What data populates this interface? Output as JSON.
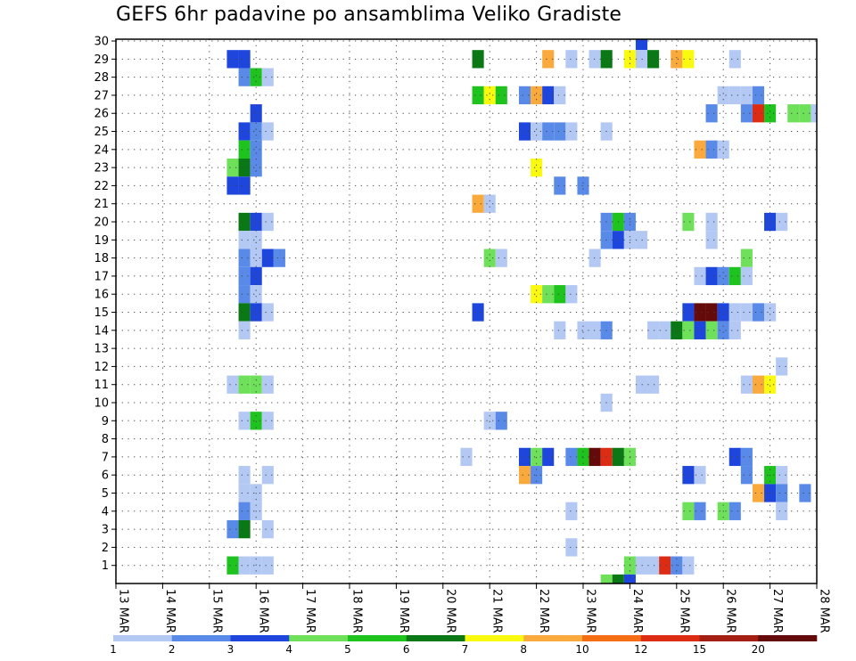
{
  "chart_data": {
    "type": "heatmap",
    "title": "GEFS 6hr padavine po ansamblima Veliko Gradiste",
    "x_tick_labels": [
      "13 MAR",
      "14 MAR",
      "15 MAR",
      "16 MAR",
      "17 MAR",
      "18 MAR",
      "19 MAR",
      "20 MAR",
      "21 MAR",
      "22 MAR",
      "23 MAR",
      "24 MAR",
      "25 MAR",
      "26 MAR",
      "27 MAR",
      "28 MAR"
    ],
    "y_tick_labels": [
      "1",
      "2",
      "3",
      "4",
      "5",
      "6",
      "7",
      "8",
      "9",
      "10",
      "11",
      "12",
      "13",
      "14",
      "15",
      "16",
      "17",
      "18",
      "19",
      "20",
      "21",
      "22",
      "23",
      "24",
      "25",
      "26",
      "27",
      "28",
      "29",
      "30"
    ],
    "x_range_days": [
      13,
      28
    ],
    "y_range_members": [
      0,
      30
    ],
    "grid": "dotted",
    "colorbar": {
      "placement": "bottom",
      "levels": [
        "1",
        "2",
        "3",
        "4",
        "5",
        "6",
        "7",
        "8",
        "10",
        "12",
        "15",
        "20"
      ],
      "colors": [
        "#b4c8f4",
        "#5a8ae8",
        "#1e46dc",
        "#6ee05a",
        "#1ec31e",
        "#0a7814",
        "#fafa10",
        "#faaa3c",
        "#f56e14",
        "#dc2d14",
        "#a51e14",
        "#640a0a"
      ]
    },
    "cells": [
      [
        30,
        24.25,
        2
      ],
      [
        29,
        15.5,
        2
      ],
      [
        29,
        15.75,
        2
      ],
      [
        29,
        20.75,
        5
      ],
      [
        29,
        22.25,
        7
      ],
      [
        29,
        22.75,
        0
      ],
      [
        29,
        23.25,
        0
      ],
      [
        29,
        23.5,
        5
      ],
      [
        29,
        24,
        6
      ],
      [
        29,
        24.25,
        0
      ],
      [
        29,
        24.5,
        5
      ],
      [
        29,
        25,
        7
      ],
      [
        29,
        25.25,
        6
      ],
      [
        29,
        26.25,
        0
      ],
      [
        28,
        15.75,
        1
      ],
      [
        28,
        16,
        4
      ],
      [
        28,
        16.25,
        0
      ],
      [
        27,
        20.75,
        4
      ],
      [
        27,
        21,
        6
      ],
      [
        27,
        21.25,
        4
      ],
      [
        27,
        21.75,
        1
      ],
      [
        27,
        22,
        7
      ],
      [
        27,
        22.25,
        2
      ],
      [
        27,
        22.5,
        0
      ],
      [
        27,
        26,
        0
      ],
      [
        27,
        26.25,
        0
      ],
      [
        27,
        26.5,
        0
      ],
      [
        27,
        26.75,
        1
      ],
      [
        26,
        16,
        2
      ],
      [
        26,
        25.75,
        1
      ],
      [
        26,
        26.5,
        1
      ],
      [
        26,
        26.75,
        9
      ],
      [
        26,
        27,
        4
      ],
      [
        26,
        27.5,
        3
      ],
      [
        26,
        27.75,
        3
      ],
      [
        26,
        28,
        0
      ],
      [
        25,
        15.75,
        2
      ],
      [
        25,
        16,
        1
      ],
      [
        25,
        16.25,
        0
      ],
      [
        25,
        21.75,
        2
      ],
      [
        25,
        22,
        0
      ],
      [
        25,
        22.25,
        1
      ],
      [
        25,
        22.5,
        1
      ],
      [
        25,
        22.75,
        0
      ],
      [
        25,
        23.5,
        0
      ],
      [
        24,
        15.75,
        4
      ],
      [
        24,
        16,
        1
      ],
      [
        24,
        25.5,
        7
      ],
      [
        24,
        25.75,
        1
      ],
      [
        24,
        26,
        0
      ],
      [
        23,
        15.5,
        3
      ],
      [
        23,
        15.75,
        5
      ],
      [
        23,
        16,
        1
      ],
      [
        23,
        22,
        6
      ],
      [
        22,
        15.5,
        2
      ],
      [
        22,
        15.75,
        2
      ],
      [
        22,
        22.5,
        1
      ],
      [
        22,
        23,
        1
      ],
      [
        21,
        20.75,
        7
      ],
      [
        21,
        21,
        0
      ],
      [
        20,
        15.75,
        5
      ],
      [
        20,
        16,
        2
      ],
      [
        20,
        16.25,
        0
      ],
      [
        20,
        23.5,
        1
      ],
      [
        20,
        23.75,
        4
      ],
      [
        20,
        24,
        1
      ],
      [
        20,
        25.25,
        3
      ],
      [
        20,
        25.75,
        0
      ],
      [
        20,
        27,
        2
      ],
      [
        20,
        27.25,
        0
      ],
      [
        19,
        15.75,
        0
      ],
      [
        19,
        16,
        0
      ],
      [
        19,
        23.5,
        1
      ],
      [
        19,
        23.75,
        2
      ],
      [
        19,
        24,
        0
      ],
      [
        19,
        24.25,
        0
      ],
      [
        19,
        25.75,
        0
      ],
      [
        18,
        15.75,
        1
      ],
      [
        18,
        16,
        0
      ],
      [
        18,
        16.25,
        2
      ],
      [
        18,
        16.5,
        1
      ],
      [
        18,
        21,
        3
      ],
      [
        18,
        21.25,
        0
      ],
      [
        18,
        23.25,
        0
      ],
      [
        18,
        26.5,
        3
      ],
      [
        17,
        15.75,
        1
      ],
      [
        17,
        16,
        2
      ],
      [
        17,
        25.5,
        0
      ],
      [
        17,
        25.75,
        2
      ],
      [
        17,
        26,
        1
      ],
      [
        17,
        26.25,
        4
      ],
      [
        17,
        26.5,
        0
      ],
      [
        16,
        15.75,
        1
      ],
      [
        16,
        16,
        0
      ],
      [
        16,
        22,
        6
      ],
      [
        16,
        22.25,
        3
      ],
      [
        16,
        22.5,
        4
      ],
      [
        16,
        22.75,
        0
      ],
      [
        15,
        15.75,
        5
      ],
      [
        15,
        16,
        2
      ],
      [
        15,
        16.25,
        0
      ],
      [
        15,
        20.75,
        2
      ],
      [
        15,
        25.25,
        2
      ],
      [
        15,
        25.5,
        11
      ],
      [
        15,
        25.75,
        11
      ],
      [
        15,
        26,
        2
      ],
      [
        15,
        26.25,
        0
      ],
      [
        15,
        26.5,
        0
      ],
      [
        15,
        26.75,
        1
      ],
      [
        15,
        27,
        0
      ],
      [
        14,
        15.75,
        0
      ],
      [
        14,
        22.5,
        0
      ],
      [
        14,
        23,
        0
      ],
      [
        14,
        23.25,
        0
      ],
      [
        14,
        23.5,
        1
      ],
      [
        14,
        24.5,
        0
      ],
      [
        14,
        24.75,
        0
      ],
      [
        14,
        25,
        5
      ],
      [
        14,
        25.25,
        3
      ],
      [
        14,
        25.5,
        2
      ],
      [
        14,
        25.75,
        3
      ],
      [
        14,
        26,
        1
      ],
      [
        14,
        26.25,
        0
      ],
      [
        12,
        27.25,
        0
      ],
      [
        11,
        15.5,
        0
      ],
      [
        11,
        15.75,
        3
      ],
      [
        11,
        16,
        3
      ],
      [
        11,
        16.25,
        0
      ],
      [
        11,
        24.25,
        0
      ],
      [
        11,
        24.5,
        0
      ],
      [
        11,
        26.5,
        0
      ],
      [
        11,
        26.75,
        7
      ],
      [
        11,
        27,
        6
      ],
      [
        10,
        23.5,
        0
      ],
      [
        9,
        15.75,
        0
      ],
      [
        9,
        16,
        4
      ],
      [
        9,
        16.25,
        0
      ],
      [
        9,
        21,
        0
      ],
      [
        9,
        21.25,
        1
      ],
      [
        7,
        20.5,
        0
      ],
      [
        7,
        21.75,
        2
      ],
      [
        7,
        22,
        3
      ],
      [
        7,
        22.25,
        2
      ],
      [
        7,
        22.75,
        1
      ],
      [
        7,
        23,
        4
      ],
      [
        7,
        23.25,
        11
      ],
      [
        7,
        23.5,
        9
      ],
      [
        7,
        23.75,
        5
      ],
      [
        7,
        24,
        3
      ],
      [
        7,
        26.25,
        2
      ],
      [
        7,
        26.5,
        1
      ],
      [
        6,
        15.75,
        0
      ],
      [
        6,
        16.25,
        0
      ],
      [
        6,
        21.75,
        7
      ],
      [
        6,
        22,
        1
      ],
      [
        6,
        25.25,
        2
      ],
      [
        6,
        25.5,
        0
      ],
      [
        6,
        26.5,
        1
      ],
      [
        6,
        27,
        4
      ],
      [
        6,
        27.25,
        0
      ],
      [
        5,
        15.75,
        0
      ],
      [
        5,
        16,
        0
      ],
      [
        5,
        26.75,
        7
      ],
      [
        5,
        27,
        2
      ],
      [
        5,
        27.25,
        1
      ],
      [
        5,
        27.75,
        1
      ],
      [
        4,
        15.75,
        1
      ],
      [
        4,
        16,
        0
      ],
      [
        4,
        22.75,
        0
      ],
      [
        4,
        25.25,
        3
      ],
      [
        4,
        25.5,
        1
      ],
      [
        4,
        26,
        3
      ],
      [
        4,
        26.25,
        1
      ],
      [
        4,
        27.25,
        0
      ],
      [
        3,
        15.5,
        1
      ],
      [
        3,
        15.75,
        5
      ],
      [
        3,
        16.25,
        0
      ],
      [
        2,
        22.75,
        0
      ],
      [
        1,
        15.5,
        4
      ],
      [
        1,
        15.75,
        0
      ],
      [
        1,
        16,
        0
      ],
      [
        1,
        16.25,
        0
      ],
      [
        1,
        24,
        3
      ],
      [
        1,
        24.25,
        0
      ],
      [
        1,
        24.5,
        0
      ],
      [
        1,
        24.75,
        9
      ],
      [
        1,
        25,
        1
      ],
      [
        1,
        25.25,
        0
      ],
      [
        0,
        23.5,
        3
      ],
      [
        0,
        23.75,
        5
      ],
      [
        0,
        24,
        2
      ]
    ]
  }
}
